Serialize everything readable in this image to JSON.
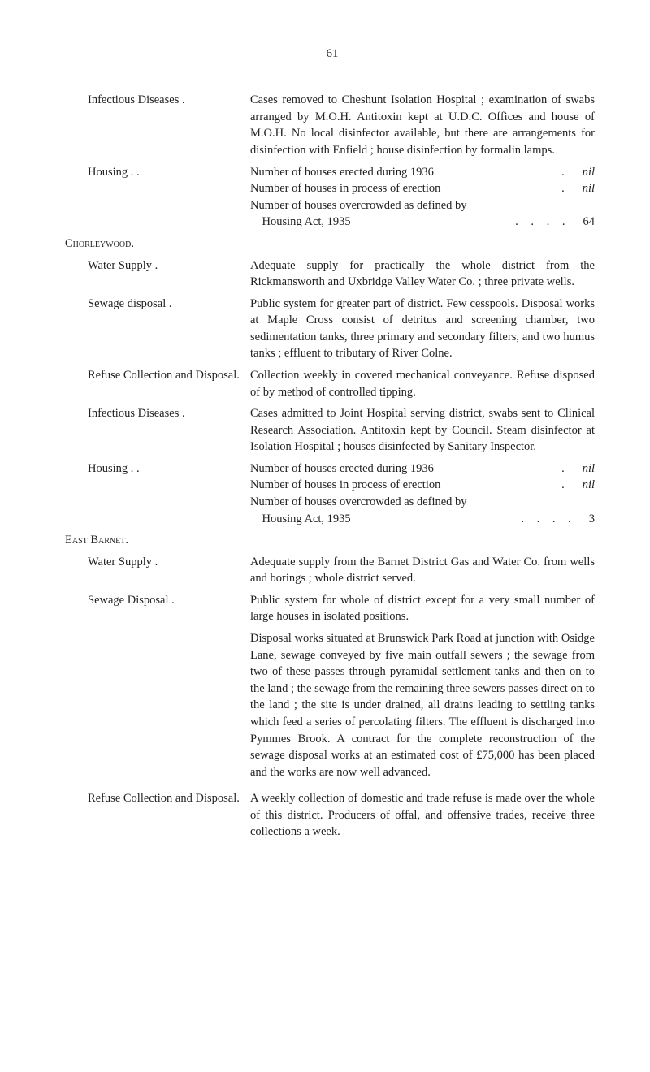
{
  "page_number": "61",
  "entries": [
    {
      "label": "Infectious Diseases .",
      "indent": true,
      "content_plain": "Cases removed to Cheshunt Isolation Hospital ; examination of swabs arranged by M.O.H. Antitoxin kept at U.D.C. Offices and house of M.O.H. No local disinfector available, but there are arrangements for disinfection with Enfield ; house disinfection by formalin lamps."
    },
    {
      "label": "Housing .  .",
      "indent": true,
      "content_lines": [
        {
          "left": "Number of houses erected during 1936",
          "dots": ".",
          "right": "nil",
          "right_italic": true
        },
        {
          "left": "Number of houses in process of erection",
          "dots": ".",
          "right": "nil",
          "right_italic": true
        },
        {
          "left": "Number of houses overcrowded as defined by",
          "dots": "",
          "right": ""
        },
        {
          "left": "    Housing Act, 1935",
          "dots": ".   .   .   .",
          "right": "64"
        }
      ]
    },
    {
      "section": "Chorleywood."
    },
    {
      "label": "Water Supply   .",
      "indent": true,
      "content_plain": "Adequate supply for practically the whole district from the Rickmansworth and Uxbridge Valley Water Co. ;   three private wells."
    },
    {
      "label": "Sewage disposal   .",
      "indent": true,
      "content_plain": "Public system for greater part of district. Few cesspools. Disposal works at Maple Cross consist of detritus and screening chamber, two sedimentation tanks, three primary and secondary filters, and two humus tanks ; effluent to tributary of River Colne."
    },
    {
      "label": "Refuse Collection and Disposal.",
      "indent": true,
      "content_plain": "Collection weekly in covered mechanical conveyance. Refuse disposed of by method of controlled tipping."
    },
    {
      "label": "Infectious Diseases .",
      "indent": true,
      "content_plain": "Cases admitted to Joint Hospital serving district, swabs sent to Clinical Research Association. Antitoxin kept by Council. Steam disinfector at Isolation Hospital ; houses disinfected by Sanitary Inspector."
    },
    {
      "label": "Housing .  .",
      "indent": true,
      "content_lines": [
        {
          "left": "Number of houses erected during 1936",
          "dots": ".",
          "right": "nil",
          "right_italic": true
        },
        {
          "left": "Number of houses in process of erection",
          "dots": ".",
          "right": "nil",
          "right_italic": true
        },
        {
          "left": "Number of houses overcrowded as defined by",
          "dots": "",
          "right": ""
        },
        {
          "left": "    Housing Act, 1935",
          "dots": ".   .   .   .",
          "right": "3"
        }
      ]
    },
    {
      "section": "East Barnet."
    },
    {
      "label": "Water Supply   .",
      "indent": true,
      "content_plain": "Adequate supply from the Barnet District Gas and Water Co. from wells and borings ; whole district served."
    },
    {
      "label": "Sewage Disposal   .",
      "indent": true,
      "content_multi": [
        "Public system for whole of district except for a very small number of large houses in isolated positions.",
        "Disposal works situated at Brunswick Park Road at junction with Osidge Lane, sewage conveyed by five main outfall sewers ; the sewage from two of these passes through pyramidal settlement tanks and then on to the land ; the sewage from the remaining three sewers passes direct on to the land ; the site is under drained, all drains leading to settling tanks which feed a series of percolating filters. The effluent is discharged into Pymmes Brook. A contract for the complete reconstruction of the sewage disposal works at an estimated cost of £75,000 has been placed and the works are now well advanced."
      ]
    },
    {
      "label": "Refuse Collection and Disposal.",
      "indent": true,
      "content_plain": "A weekly collection of domestic and trade refuse is made over the whole of this district. Producers of offal, and offensive trades, receive three collections a week."
    }
  ]
}
